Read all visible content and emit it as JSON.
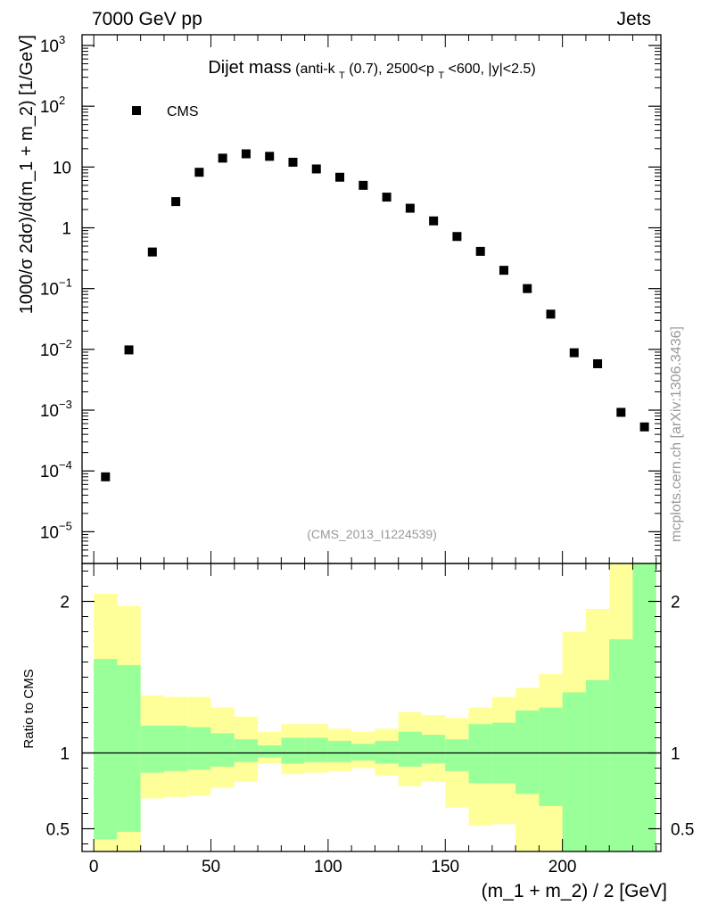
{
  "header": {
    "energy_label": "7000 GeV pp",
    "process_label": "Jets"
  },
  "side_label": "mcplots.cern.ch [arXiv:1306.3436]",
  "colors": {
    "band_outer": "#ffff99",
    "band_inner": "#99ff99",
    "marker": "#000000",
    "watermark": "#999999"
  },
  "chart_data": [
    {
      "type": "scatter",
      "title_main": "Dijet mass",
      "title_detail": {
        "part1": "(anti-k",
        "sub1": "T",
        "part2": "(0.7), 2500<p",
        "sub2": "T",
        "part3": "<600, |y|<2.5)"
      },
      "ylabel": "1000/σ 2dσ)/d(m_1 + m_2) [1/GeV]",
      "yscale": "log",
      "ylim": [
        3e-06,
        1500
      ],
      "xlim": [
        -5,
        242
      ],
      "legend": {
        "label": "CMS",
        "position": "top-left"
      },
      "watermark": "(CMS_2013_I1224539)",
      "yticks": [
        {
          "value": 1e-05,
          "base": "10",
          "exp": "−5"
        },
        {
          "value": 0.0001,
          "base": "10",
          "exp": "−4"
        },
        {
          "value": 0.001,
          "base": "10",
          "exp": "−3"
        },
        {
          "value": 0.01,
          "base": "10",
          "exp": "−2"
        },
        {
          "value": 0.1,
          "base": "10",
          "exp": "−1"
        },
        {
          "value": 1,
          "base": "1",
          "exp": ""
        },
        {
          "value": 10,
          "base": "10",
          "exp": ""
        },
        {
          "value": 100,
          "base": "10",
          "exp": "2"
        },
        {
          "value": 1000,
          "base": "10",
          "exp": "3"
        }
      ],
      "series": [
        {
          "name": "CMS",
          "x": [
            5,
            15,
            25,
            35,
            45,
            55,
            65,
            75,
            85,
            95,
            105,
            115,
            125,
            135,
            145,
            155,
            165,
            175,
            185,
            195,
            205,
            215,
            225,
            235
          ],
          "y": [
            8e-05,
            0.0098,
            0.4,
            2.7,
            8.2,
            14,
            16.5,
            15,
            12,
            9.3,
            6.8,
            5,
            3.2,
            2.1,
            1.3,
            0.72,
            0.41,
            0.2,
            0.1,
            0.038,
            0.0088,
            0.0058,
            0.00092,
            0.00053
          ]
        }
      ]
    },
    {
      "type": "area",
      "ylabel": "Ratio to CMS",
      "xlabel": "(m_1 + m_2) / 2 [GeV]",
      "ylim": [
        0.35,
        2.25
      ],
      "xlim": [
        -5,
        242
      ],
      "reference_line": 1,
      "xticks": [
        0,
        50,
        100,
        150,
        200
      ],
      "yticks": [
        0.5,
        1,
        2
      ],
      "bins": [
        {
          "x0": 0,
          "x1": 10,
          "outer_lo": 0.35,
          "outer_hi": 2.05,
          "inner_lo": 0.43,
          "inner_hi": 1.62
        },
        {
          "x0": 10,
          "x1": 20,
          "outer_lo": 0.35,
          "outer_hi": 1.97,
          "inner_lo": 0.48,
          "inner_hi": 1.58
        },
        {
          "x0": 20,
          "x1": 30,
          "outer_lo": 0.7,
          "outer_hi": 1.38,
          "inner_lo": 0.87,
          "inner_hi": 1.18
        },
        {
          "x0": 30,
          "x1": 40,
          "outer_lo": 0.71,
          "outer_hi": 1.37,
          "inner_lo": 0.88,
          "inner_hi": 1.18
        },
        {
          "x0": 40,
          "x1": 50,
          "outer_lo": 0.72,
          "outer_hi": 1.37,
          "inner_lo": 0.89,
          "inner_hi": 1.17
        },
        {
          "x0": 50,
          "x1": 60,
          "outer_lo": 0.77,
          "outer_hi": 1.3,
          "inner_lo": 0.91,
          "inner_hi": 1.13
        },
        {
          "x0": 60,
          "x1": 70,
          "outer_lo": 0.81,
          "outer_hi": 1.24,
          "inner_lo": 0.94,
          "inner_hi": 1.09
        },
        {
          "x0": 70,
          "x1": 80,
          "outer_lo": 0.93,
          "outer_hi": 1.14,
          "inner_lo": 0.97,
          "inner_hi": 1.05
        },
        {
          "x0": 80,
          "x1": 90,
          "outer_lo": 0.86,
          "outer_hi": 1.19,
          "inner_lo": 0.93,
          "inner_hi": 1.1
        },
        {
          "x0": 90,
          "x1": 100,
          "outer_lo": 0.87,
          "outer_hi": 1.19,
          "inner_lo": 0.94,
          "inner_hi": 1.1
        },
        {
          "x0": 100,
          "x1": 110,
          "outer_lo": 0.88,
          "outer_hi": 1.16,
          "inner_lo": 0.94,
          "inner_hi": 1.08
        },
        {
          "x0": 110,
          "x1": 120,
          "outer_lo": 0.9,
          "outer_hi": 1.14,
          "inner_lo": 0.95,
          "inner_hi": 1.06
        },
        {
          "x0": 120,
          "x1": 130,
          "outer_lo": 0.85,
          "outer_hi": 1.16,
          "inner_lo": 0.93,
          "inner_hi": 1.08
        },
        {
          "x0": 130,
          "x1": 140,
          "outer_lo": 0.78,
          "outer_hi": 1.27,
          "inner_lo": 0.91,
          "inner_hi": 1.14
        },
        {
          "x0": 140,
          "x1": 150,
          "outer_lo": 0.81,
          "outer_hi": 1.25,
          "inner_lo": 0.93,
          "inner_hi": 1.12
        },
        {
          "x0": 150,
          "x1": 160,
          "outer_lo": 0.64,
          "outer_hi": 1.23,
          "inner_lo": 0.88,
          "inner_hi": 1.09
        },
        {
          "x0": 160,
          "x1": 170,
          "outer_lo": 0.52,
          "outer_hi": 1.3,
          "inner_lo": 0.8,
          "inner_hi": 1.19
        },
        {
          "x0": 170,
          "x1": 180,
          "outer_lo": 0.53,
          "outer_hi": 1.37,
          "inner_lo": 0.8,
          "inner_hi": 1.2
        },
        {
          "x0": 180,
          "x1": 190,
          "outer_lo": 0.35,
          "outer_hi": 1.43,
          "inner_lo": 0.73,
          "inner_hi": 1.28
        },
        {
          "x0": 190,
          "x1": 200,
          "outer_lo": 0.35,
          "outer_hi": 1.52,
          "inner_lo": 0.65,
          "inner_hi": 1.3
        },
        {
          "x0": 200,
          "x1": 210,
          "outer_lo": 0.35,
          "outer_hi": 1.8,
          "inner_lo": 0.35,
          "inner_hi": 1.4
        },
        {
          "x0": 210,
          "x1": 220,
          "outer_lo": 0.35,
          "outer_hi": 1.95,
          "inner_lo": 0.35,
          "inner_hi": 1.48
        },
        {
          "x0": 220,
          "x1": 230,
          "outer_lo": 0.35,
          "outer_hi": 2.25,
          "inner_lo": 0.35,
          "inner_hi": 1.75
        },
        {
          "x0": 230,
          "x1": 240,
          "outer_lo": 0.35,
          "outer_hi": 2.25,
          "inner_lo": 0.35,
          "inner_hi": 2.25
        }
      ]
    }
  ]
}
